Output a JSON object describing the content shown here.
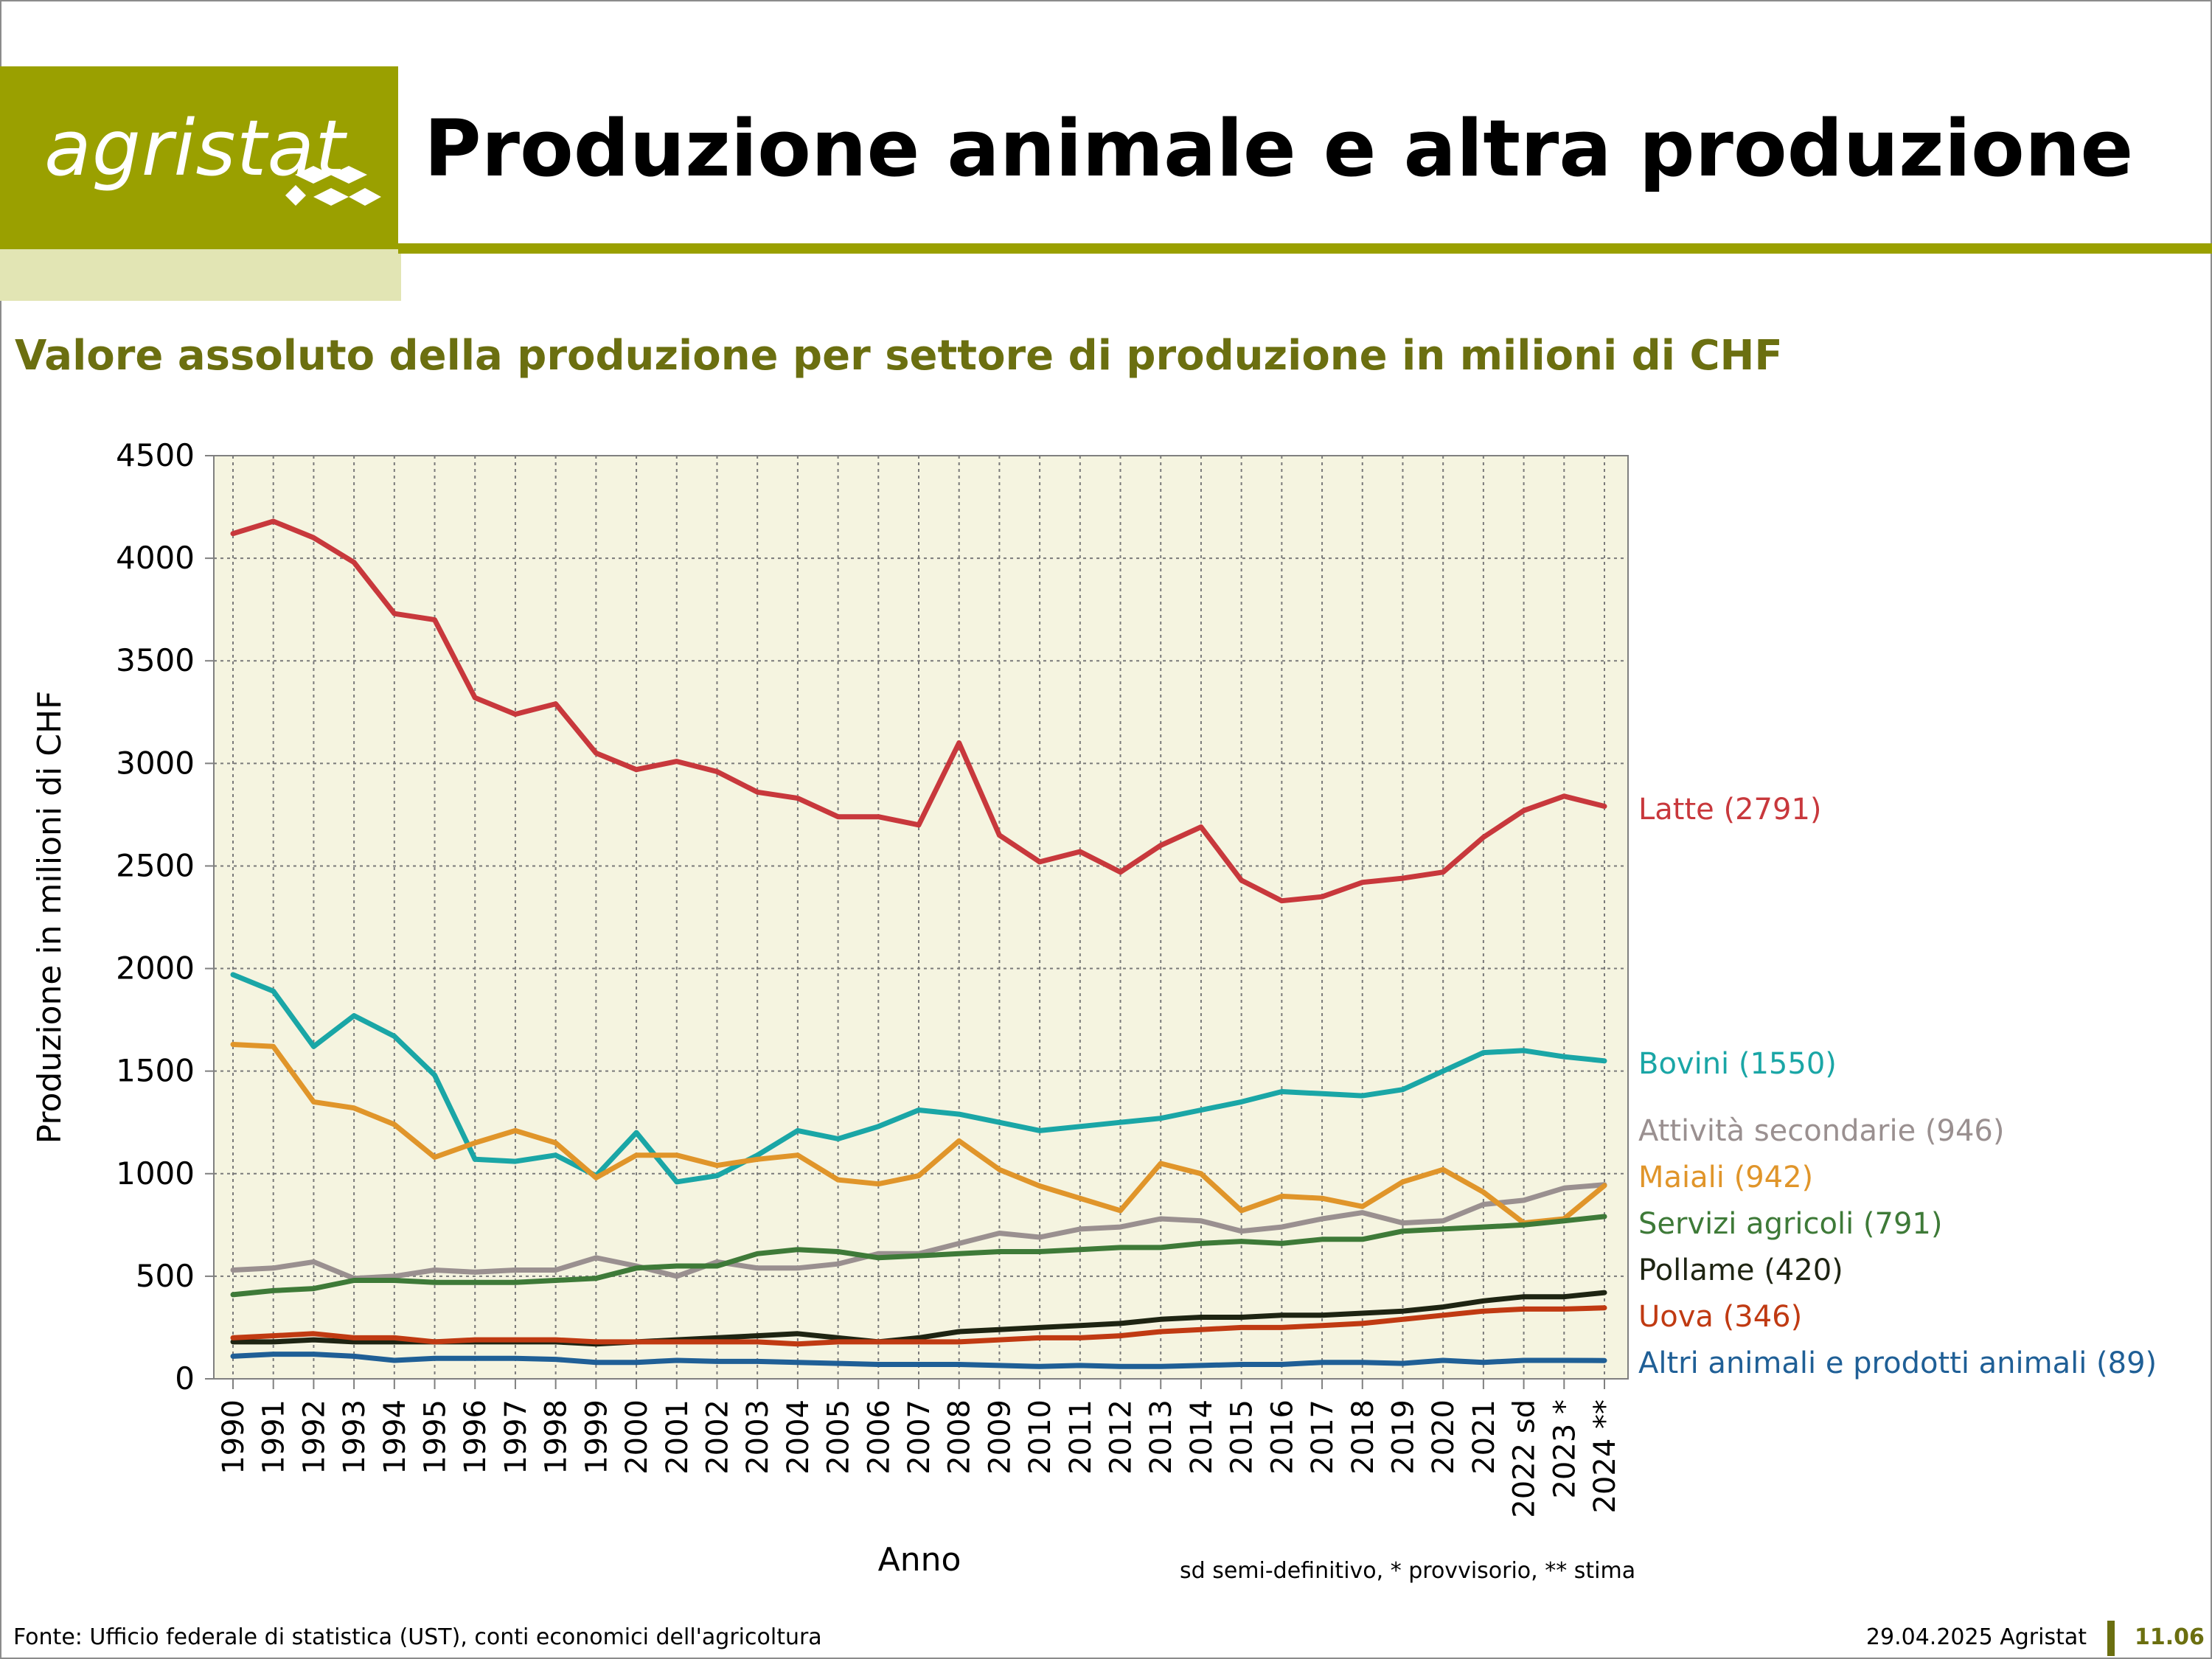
{
  "header": {
    "logo_text": "agristat",
    "title": "Produzione animale e altra produzione",
    "brand_color": "#9aa000"
  },
  "subtitle": "Valore assoluto della produzione per settore di produzione in milioni di CHF",
  "note": "sd semi-definitivo, * provvisorio, ** stima",
  "footer": {
    "source": "Fonte: Ufficio federale di statistica (UST), conti economici dell'agricoltura",
    "date": "29.04.2025 Agristat",
    "page": "11.06"
  },
  "chart_data": {
    "type": "line",
    "title": "",
    "xlabel": "Anno",
    "ylabel": "Produzione in milioni di CHF",
    "ylim": [
      0,
      4500
    ],
    "yticks": [
      0,
      500,
      1000,
      1500,
      2000,
      2500,
      3000,
      3500,
      4000,
      4500
    ],
    "grid": true,
    "plot_background": "#f5f4e0",
    "categories": [
      "1990",
      "1991",
      "1992",
      "1993",
      "1994",
      "1995",
      "1996",
      "1997",
      "1998",
      "1999",
      "2000",
      "2001",
      "2002",
      "2003",
      "2004",
      "2005",
      "2006",
      "2007",
      "2008",
      "2009",
      "2010",
      "2011",
      "2012",
      "2013",
      "2014",
      "2015",
      "2016",
      "2017",
      "2018",
      "2019",
      "2020",
      "2021",
      "2022 sd",
      "2023 *",
      "2024 **"
    ],
    "series": [
      {
        "name": "Latte (2791)",
        "color": "#c8383c",
        "values": [
          4120,
          4180,
          4100,
          3980,
          3730,
          3700,
          3320,
          3240,
          3290,
          3050,
          2970,
          3010,
          2960,
          2860,
          2830,
          2740,
          2740,
          2700,
          3100,
          2650,
          2520,
          2570,
          2470,
          2600,
          2690,
          2430,
          2330,
          2350,
          2420,
          2440,
          2470,
          2640,
          2770,
          2840,
          2791
        ]
      },
      {
        "name": "Bovini (1550)",
        "color": "#1aa6a6",
        "values": [
          1970,
          1890,
          1620,
          1770,
          1670,
          1480,
          1070,
          1060,
          1090,
          990,
          1200,
          960,
          990,
          1090,
          1210,
          1170,
          1230,
          1310,
          1290,
          1250,
          1210,
          1230,
          1250,
          1270,
          1310,
          1350,
          1400,
          1390,
          1380,
          1410,
          1500,
          1590,
          1600,
          1570,
          1550
        ]
      },
      {
        "name": "Attività secondarie (946)",
        "color": "#9a9090",
        "values": [
          530,
          540,
          570,
          490,
          500,
          530,
          520,
          530,
          530,
          590,
          550,
          500,
          570,
          540,
          540,
          560,
          610,
          610,
          660,
          710,
          690,
          730,
          740,
          780,
          770,
          720,
          740,
          780,
          810,
          760,
          770,
          850,
          870,
          930,
          946
        ]
      },
      {
        "name": "Maiali (942)",
        "color": "#e0952a",
        "values": [
          1630,
          1620,
          1350,
          1320,
          1240,
          1080,
          1150,
          1210,
          1150,
          980,
          1090,
          1090,
          1040,
          1070,
          1090,
          970,
          950,
          990,
          1160,
          1020,
          940,
          880,
          820,
          1050,
          1000,
          820,
          890,
          880,
          840,
          960,
          1020,
          910,
          760,
          780,
          942
        ]
      },
      {
        "name": "Servizi agricoli (791)",
        "color": "#3e7a38",
        "values": [
          410,
          430,
          440,
          480,
          480,
          470,
          470,
          470,
          480,
          490,
          540,
          550,
          550,
          610,
          630,
          620,
          590,
          600,
          610,
          620,
          620,
          630,
          640,
          640,
          660,
          670,
          660,
          680,
          680,
          720,
          730,
          740,
          750,
          770,
          791
        ]
      },
      {
        "name": "Pollame (420)",
        "color": "#1e2412",
        "values": [
          180,
          180,
          190,
          180,
          180,
          180,
          180,
          180,
          180,
          170,
          180,
          190,
          200,
          210,
          220,
          200,
          180,
          200,
          230,
          240,
          250,
          260,
          270,
          290,
          300,
          300,
          310,
          310,
          320,
          330,
          350,
          380,
          400,
          400,
          420
        ]
      },
      {
        "name": "Uova (346)",
        "color": "#c03a12",
        "values": [
          200,
          210,
          220,
          200,
          200,
          180,
          190,
          190,
          190,
          180,
          180,
          180,
          180,
          180,
          170,
          180,
          180,
          180,
          180,
          190,
          200,
          200,
          210,
          230,
          240,
          250,
          250,
          260,
          270,
          290,
          310,
          330,
          340,
          340,
          346
        ]
      },
      {
        "name": "Altri animali e prodotti animali (89)",
        "color": "#1f5f96",
        "values": [
          110,
          120,
          120,
          110,
          90,
          100,
          100,
          100,
          95,
          80,
          80,
          90,
          85,
          85,
          80,
          75,
          70,
          70,
          70,
          65,
          60,
          65,
          60,
          60,
          65,
          70,
          70,
          80,
          80,
          75,
          90,
          80,
          90,
          90,
          89
        ]
      }
    ]
  }
}
